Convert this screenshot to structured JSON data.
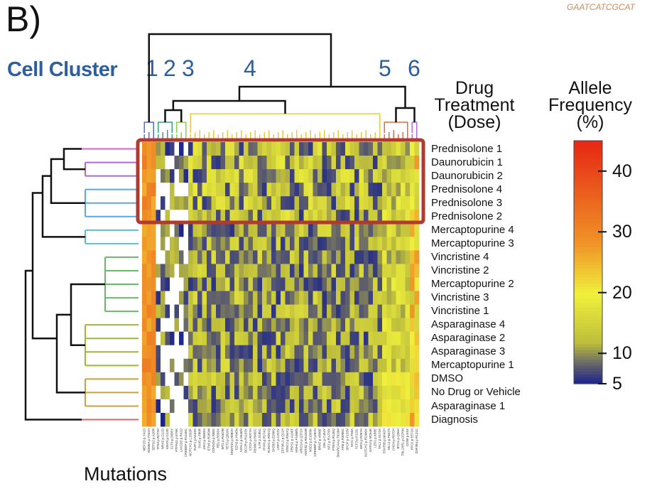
{
  "panel_label": "B)",
  "cell_cluster_label": "Cell Cluster",
  "cluster_numbers": [
    "1",
    "2",
    "3",
    "4",
    "5",
    "6"
  ],
  "drug_header": [
    "Drug",
    "Treatment",
    "(Dose)"
  ],
  "freq_header": [
    "Allele",
    "Frequency",
    "(%)"
  ],
  "mutations_label": "Mutations",
  "logo_text": "GAATCATCGCAT",
  "colors": {
    "cluster_text": "#2f5e9c",
    "highlight_box": "#b03a2e",
    "low": "#15208f",
    "mid": "#e8e83a",
    "high": "#e8341c"
  },
  "chart_data": {
    "type": "heatmap",
    "rows": [
      "Prednisolone 1",
      "Daunorubicin 1",
      "Daunorubicin 2",
      "Prednisolone 4",
      "Prednisolone 3",
      "Prednisolone 2",
      "Mercaptopurine 4",
      "Mercaptopurine 3",
      "Vincristine 4",
      "Vincristine 2",
      "Mercaptopurine 2",
      "Vincristine 3",
      "Vincristine 1",
      "Asparaginase 4",
      "Asparaginase 2",
      "Asparaginase 3",
      "Mercaptopurine 1",
      "DMSO",
      "No Drug or Vehicle",
      "Asparaginase 1",
      "Diagnosis"
    ],
    "column_clusters": [
      {
        "name": "1",
        "columns": 3
      },
      {
        "name": "2",
        "columns": 4
      },
      {
        "name": "3",
        "columns": 3
      },
      {
        "name": "4",
        "columns": 42
      },
      {
        "name": "5",
        "columns": 6
      },
      {
        "name": "6",
        "columns": 2
      }
    ],
    "colorbar": {
      "label": "Allele Frequency (%)",
      "min": 5,
      "max": 45,
      "ticks": [
        5,
        10,
        20,
        30,
        40
      ]
    },
    "highlighted_rows": [
      "Prednisolone 1",
      "Daunorubicin 1",
      "Daunorubicin 2",
      "Prednisolone 4",
      "Prednisolone 3",
      "Prednisolone 2"
    ],
    "row_dendrogram_groups": [
      {
        "rows": [
          "Prednisolone 1"
        ],
        "color": "#d566c8"
      },
      {
        "rows": [
          "Daunorubicin 1",
          "Daunorubicin 2"
        ],
        "color": "#a86ad8"
      },
      {
        "rows": [
          "Prednisolone 4",
          "Prednisolone 3",
          "Prednisolone 2"
        ],
        "color": "#5aa6e6"
      },
      {
        "rows": [
          "Mercaptopurine 4",
          "Mercaptopurine 3"
        ],
        "color": "#5cc0cc"
      },
      {
        "rows": [
          "Vincristine 4",
          "Vincristine 2",
          "Mercaptopurine 2",
          "Vincristine 3",
          "Vincristine 1"
        ],
        "color": "#66bb6a"
      },
      {
        "rows": [
          "Asparaginase 4",
          "Asparaginase 2",
          "Asparaginase 3",
          "Mercaptopurine 1"
        ],
        "color": "#9cb83a"
      },
      {
        "rows": [
          "DMSO",
          "No Drug or Vehicle",
          "Asparaginase 1"
        ],
        "color": "#c8a040"
      },
      {
        "rows": [
          "Diagnosis"
        ],
        "color": "#d06a6a"
      }
    ],
    "column_cluster_colors": [
      "#4a6fd8",
      "#3aa080",
      "#8ad04a",
      "#e8c840",
      "#e0684a",
      "#b86ad8"
    ],
    "mutation_labels": [
      "MEF2D p.Y41D",
      "KDM6A p.Y341H",
      "SETD2 p.A26R",
      "TP53 p.R273H",
      "NRAS p.G12D",
      "KRAS p.G13D",
      "FLT3 p.D835Y",
      "PTPN11 p.E76K",
      "LAX2D2 p.R41D",
      "CREBBP p.R1446C",
      "NOTCH1 p.L1593P",
      "IKZF1 p.N159S",
      "PAX5 p.P80R",
      "JAK2 p.R683G",
      "ETV6 p.R369W",
      "CDKN2A p.R80X",
      "RB1 p.R556X",
      "WT1 p.R462W",
      "TET2 p.Q810X",
      "DNMT3A p.R882H",
      "EZH2 p.Y646N",
      "ASXL1 p.G646fs",
      "BCOR p.R1163X",
      "CTCF p.R377H",
      "FBXW7 p.R465C",
      "IL7R p.S185C",
      "PHF6 p.R274Q",
      "RUNX1 p.R201Q",
      "SH2B3 p.E208Q",
      "USP7 p.C223Y",
      "ZFP36L2 p.Q12X",
      "NT5C2 p.R367Q",
      "PRPS1 p.A190T",
      "MSH6 p.F1088fs",
      "ARID1A p.Q372X",
      "KMT2D p.R5432W",
      "NSD2 p.E1099K",
      "CREBBP p.Y1482H",
      "BRAF p.V600E",
      "CBL p.C404Y",
      "NF1 p.R1276X",
      "PTEN p.R130Q",
      "SMARCA4 p.T910M",
      "ATM p.R3008C",
      "SPOP p.F133V",
      "MYC p.T58A",
      "TCF3 p.P123L",
      "ERG p.R367H",
      "NOTCH2 p.R2400X",
      "GATA3 p.M294K",
      "LEF1 p.K86E",
      "TAL1 p.S172A",
      "STAT5B p.N642H",
      "MLL2 p.P647S",
      "CHD4 p.R975H",
      "BTG1 p.Q36H",
      "TBL1XR1 p.D370N",
      "CD58 p.E3X",
      "XPO1 p.E571K",
      "ZNF384 p.R121C"
    ]
  }
}
